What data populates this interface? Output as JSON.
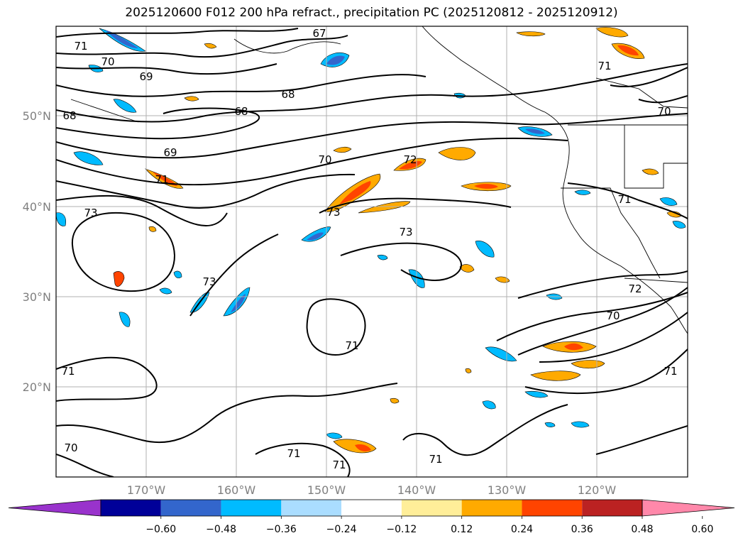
{
  "title": "2025120600 F012 200 hPa refract., precipitation PC (2025120812 - 2025120912)",
  "latitude_labels": [
    "50°N",
    "40°N",
    "30°N",
    "20°N"
  ],
  "longitude_labels": [
    "170°W",
    "160°W",
    "150°W",
    "140°W",
    "130°W",
    "120°W"
  ],
  "contour_labels": [
    "71",
    "70",
    "69",
    "68",
    "67",
    "68",
    "68",
    "69",
    "70",
    "71",
    "72",
    "73",
    "73",
    "73",
    "71",
    "71",
    "70",
    "71",
    "71",
    "71",
    "72",
    "70",
    "71",
    "73",
    "71",
    "70",
    "71"
  ],
  "colorbar": {
    "tick_labels": [
      "−0.60",
      "−0.48",
      "−0.36",
      "−0.24",
      "−0.12",
      "0.12",
      "0.24",
      "0.36",
      "0.48",
      "0.60"
    ],
    "colors": [
      "#9933cc",
      "#000099",
      "#3366cc",
      "#00bbff",
      "#aaddff",
      "#ffffff",
      "#ffee99",
      "#ffaa00",
      "#ff4400",
      "#bb2222",
      "#ff88aa"
    ]
  },
  "colors": {
    "orange": "#ffaa00",
    "red": "#ff4400",
    "cyan": "#00bbff",
    "blue": "#3366cc",
    "grid": "#b0b0b0"
  }
}
